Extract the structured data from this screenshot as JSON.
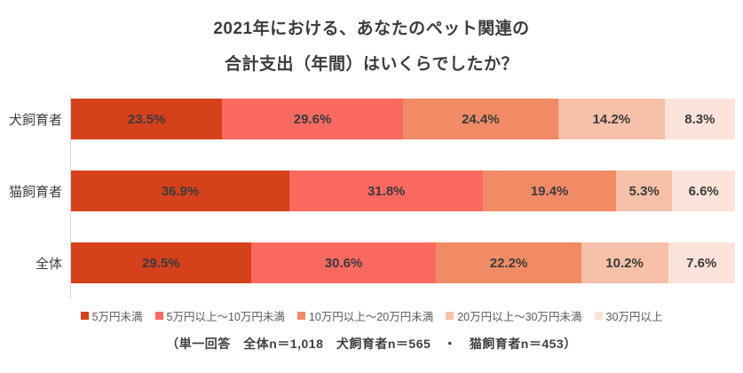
{
  "title": {
    "line1": "2021年における、あなたのペット関連の",
    "line2": "合計支出（年間）はいくらでしたか？"
  },
  "chart_data": {
    "type": "bar",
    "stacked": true,
    "orientation": "horizontal",
    "categories": [
      "犬飼育者",
      "猫飼育者",
      "全体"
    ],
    "series": [
      {
        "name": "5万円未満",
        "color": "#d4411b",
        "values": [
          23.5,
          36.9,
          29.5
        ]
      },
      {
        "name": "5万円以上～10万円未満",
        "color": "#fb6a61",
        "values": [
          29.6,
          31.8,
          30.6
        ]
      },
      {
        "name": "10万円以上～20万円未満",
        "color": "#f18b66",
        "values": [
          24.4,
          19.4,
          22.2
        ]
      },
      {
        "name": "20万円以上～30万円未満",
        "color": "#f7c0a9",
        "values": [
          14.2,
          5.3,
          10.2
        ]
      },
      {
        "name": "30万円以上",
        "color": "#fce3da",
        "values": [
          8.3,
          6.6,
          7.6
        ]
      }
    ],
    "value_suffix": "%",
    "xlim": [
      0,
      100
    ],
    "grid": false,
    "legend_position": "bottom",
    "label_color": "#3b3b3b"
  },
  "footnote": "（単一回答　全体n＝1,018　犬飼育者n＝565　・　猫飼育者n＝453）"
}
